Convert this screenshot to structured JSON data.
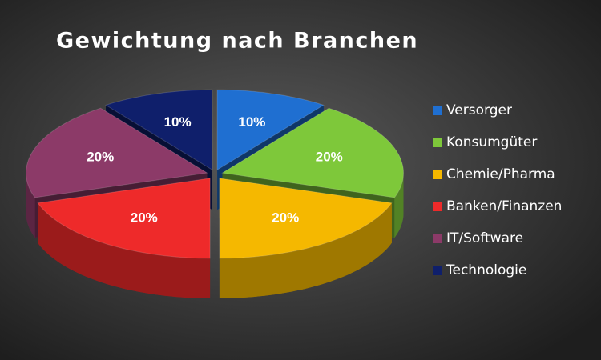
{
  "chart_data": {
    "type": "pie",
    "title": "Gewichtung nach Branchen",
    "categories": [
      "Versorger",
      "Konsumgüter",
      "Chemie/Pharma",
      "Banken/Finanzen",
      "IT/Software",
      "Technologie"
    ],
    "values": [
      10,
      20,
      20,
      20,
      20,
      10
    ],
    "value_labels": [
      "10%",
      "20%",
      "20%",
      "20%",
      "20%",
      "10%"
    ],
    "colors": [
      "#1f6fd1",
      "#7ec83a",
      "#f5b800",
      "#ee2a2a",
      "#8c3a68",
      "#0f1f6b"
    ],
    "legend": "right"
  }
}
